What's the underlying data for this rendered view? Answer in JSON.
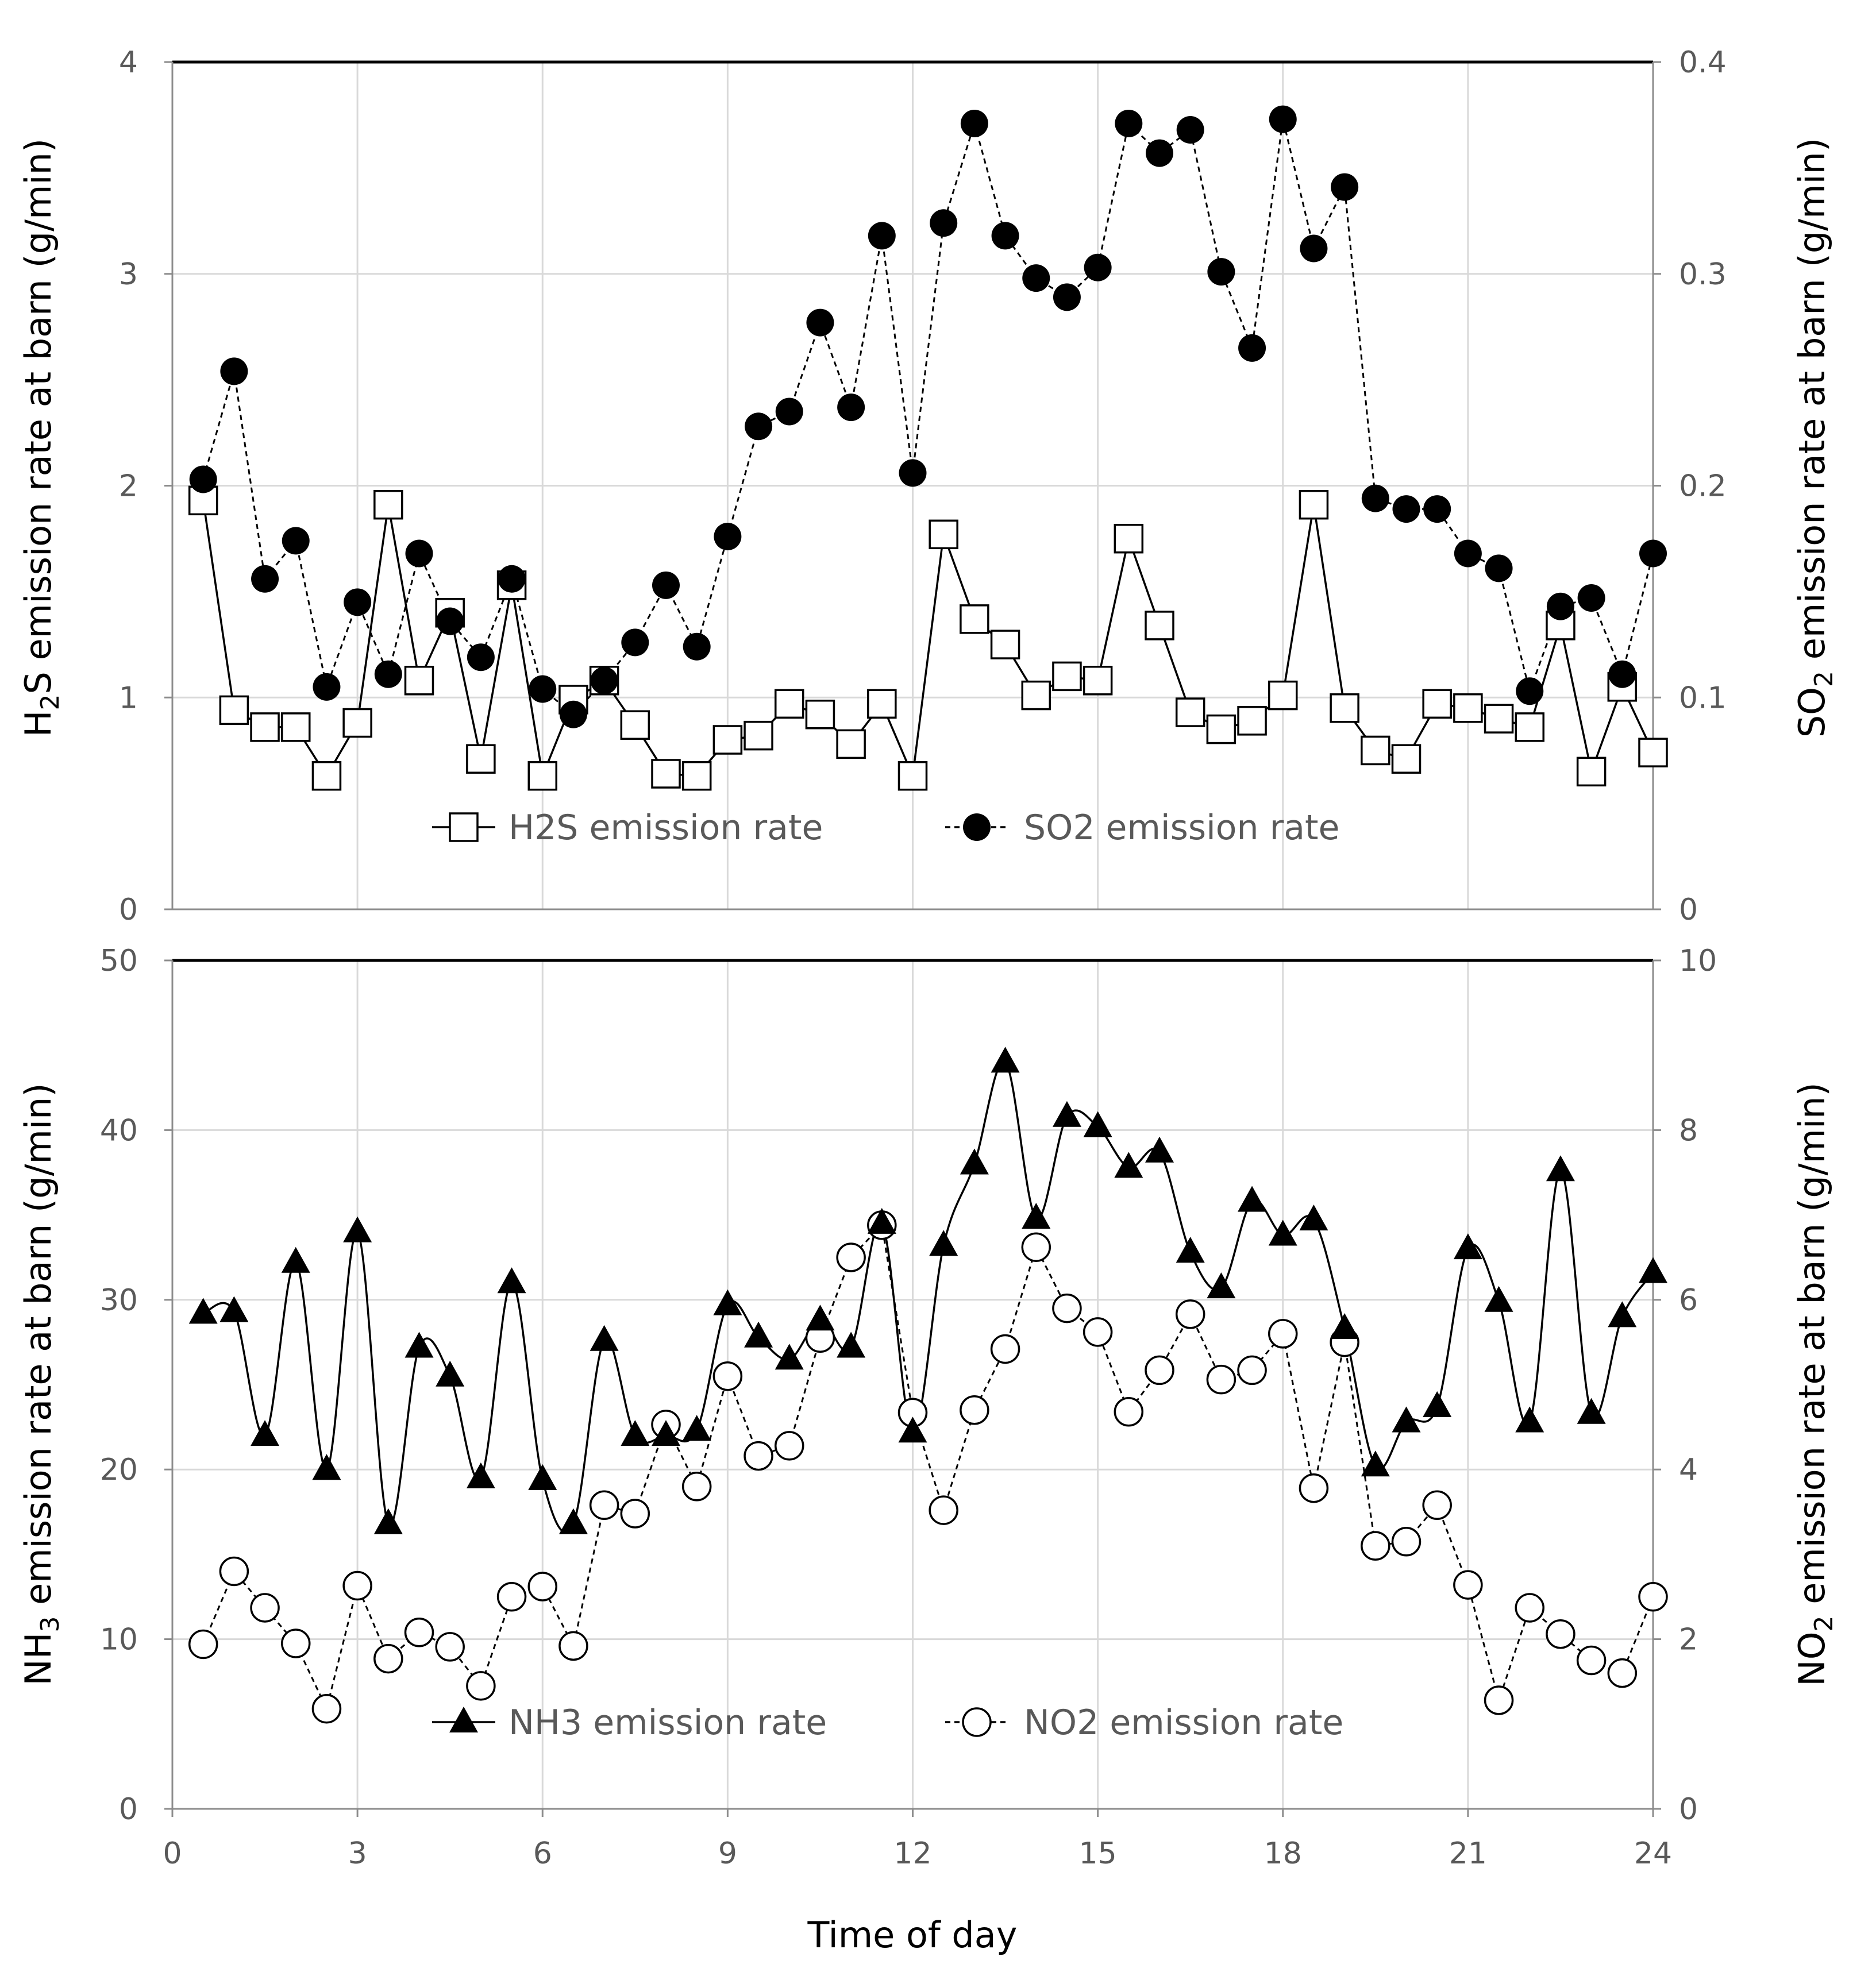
{
  "chart_data": [
    {
      "type": "line",
      "panel": "top",
      "title": "",
      "xlabel": "",
      "ylabel_left": {
        "base": "H",
        "sub": "2",
        "rest": "S emission rate at barn (g/min)"
      },
      "ylabel_right": {
        "base": "SO",
        "sub": "2",
        "rest": " emission rate at barn (g/min)"
      },
      "xlim": [
        0,
        24
      ],
      "ylim_left": [
        0,
        4
      ],
      "ylim_right": [
        0,
        0.4
      ],
      "yticks_left": [
        "0",
        "1",
        "2",
        "3",
        "4"
      ],
      "yticks_right": [
        "0",
        "0.1",
        "0.2",
        "0.3",
        "0.4"
      ],
      "x": [
        0.5,
        1,
        1.5,
        2,
        2.5,
        3,
        3.5,
        4,
        4.5,
        5,
        5.5,
        6,
        6.5,
        7,
        7.5,
        8,
        8.5,
        9,
        9.5,
        10,
        10.5,
        11,
        11.5,
        12,
        12.5,
        13,
        13.5,
        14,
        14.5,
        15,
        15.5,
        16,
        16.5,
        17,
        17.5,
        18,
        18.5,
        19,
        19.5,
        20,
        20.5,
        21,
        21.5,
        22,
        22.5,
        23,
        23.5,
        24
      ],
      "series": [
        {
          "name": "H2S emission rate",
          "axis": "left",
          "marker": "open-square",
          "line": "solid",
          "values": [
            1.93,
            0.94,
            0.86,
            0.86,
            0.63,
            0.88,
            1.91,
            1.08,
            1.4,
            0.71,
            1.53,
            0.63,
            0.99,
            1.08,
            0.87,
            0.64,
            0.63,
            0.8,
            0.82,
            0.97,
            0.92,
            0.78,
            0.97,
            0.63,
            1.77,
            1.37,
            1.25,
            1.01,
            1.1,
            1.08,
            1.75,
            1.34,
            0.93,
            0.85,
            0.89,
            1.01,
            1.91,
            0.95,
            0.75,
            0.71,
            0.97,
            0.95,
            0.9,
            0.86,
            1.34,
            0.65,
            1.05,
            0.74
          ]
        },
        {
          "name": "SO2 emission rate",
          "axis": "right",
          "marker": "filled-circle",
          "line": "dashed",
          "values": [
            0.203,
            0.254,
            0.156,
            0.174,
            0.105,
            0.145,
            0.111,
            0.168,
            0.136,
            0.119,
            0.156,
            0.104,
            0.092,
            0.108,
            0.126,
            0.153,
            0.124,
            0.176,
            0.228,
            0.235,
            0.277,
            0.237,
            0.318,
            0.206,
            0.324,
            0.371,
            0.318,
            0.298,
            0.289,
            0.303,
            0.371,
            0.357,
            0.368,
            0.301,
            0.265,
            0.373,
            0.312,
            0.341,
            0.194,
            0.189,
            0.189,
            0.168,
            0.161,
            0.103,
            0.143,
            0.147,
            0.111,
            0.168
          ]
        }
      ],
      "legend_position": "bottom-center"
    },
    {
      "type": "line",
      "panel": "bottom",
      "title": "",
      "xlabel": "Time of day",
      "ylabel_left": {
        "base": "NH",
        "sub": "3",
        "rest": " emission rate at barn (g/min)"
      },
      "ylabel_right": {
        "base": "NO",
        "sub": "2",
        "rest": " emission rate at barn (g/min)"
      },
      "xlim": [
        0,
        24
      ],
      "xticks": [
        "0",
        "3",
        "6",
        "9",
        "12",
        "15",
        "18",
        "21",
        "24"
      ],
      "ylim_left": [
        0,
        50
      ],
      "ylim_right": [
        0,
        10
      ],
      "yticks_left": [
        "0",
        "10",
        "20",
        "30",
        "40",
        "50"
      ],
      "yticks_right": [
        "0",
        "2",
        "4",
        "6",
        "8",
        "10"
      ],
      "x": [
        0.5,
        1,
        1.5,
        2,
        2.5,
        3,
        3.5,
        4,
        4.5,
        5,
        5.5,
        6,
        6.5,
        7,
        7.5,
        8,
        8.5,
        9,
        9.5,
        10,
        10.5,
        11,
        11.5,
        12,
        12.5,
        13,
        13.5,
        14,
        14.5,
        15,
        15.5,
        16,
        16.5,
        17,
        17.5,
        18,
        18.5,
        19,
        19.5,
        20,
        20.5,
        21,
        21.5,
        22,
        22.5,
        23,
        23.5,
        24
      ],
      "series": [
        {
          "name": "NH3 emission rate",
          "axis": "left",
          "marker": "filled-triangle",
          "line": "solid-smooth",
          "values": [
            29.2,
            29.3,
            22.0,
            32.2,
            20.0,
            34.0,
            16.8,
            27.2,
            25.5,
            19.5,
            31.0,
            19.4,
            16.8,
            27.6,
            22.0,
            22.0,
            22.3,
            29.7,
            27.8,
            26.5,
            28.8,
            27.2,
            34.5,
            22.2,
            33.2,
            38.0,
            44.0,
            34.8,
            40.8,
            40.2,
            37.8,
            38.7,
            32.8,
            30.7,
            35.8,
            33.8,
            34.7,
            28.3,
            20.2,
            22.8,
            23.7,
            33.0,
            29.9,
            22.8,
            37.6,
            23.3,
            29.0,
            31.6
          ]
        },
        {
          "name": "NO2 emission rate",
          "axis": "right",
          "marker": "open-circle",
          "line": "dashed",
          "values": [
            1.94,
            2.8,
            2.37,
            1.95,
            1.18,
            2.63,
            1.77,
            2.08,
            1.91,
            1.45,
            2.5,
            2.62,
            1.92,
            3.58,
            3.48,
            4.53,
            3.8,
            5.1,
            4.16,
            4.28,
            5.55,
            6.5,
            6.88,
            4.67,
            3.52,
            4.7,
            5.42,
            6.62,
            5.9,
            5.62,
            4.68,
            5.17,
            5.83,
            5.06,
            5.17,
            5.6,
            3.78,
            5.5,
            3.1,
            3.15,
            3.58,
            2.64,
            1.28,
            2.37,
            2.06,
            1.75,
            1.6,
            2.5
          ]
        }
      ],
      "legend_position": "bottom-center"
    }
  ]
}
